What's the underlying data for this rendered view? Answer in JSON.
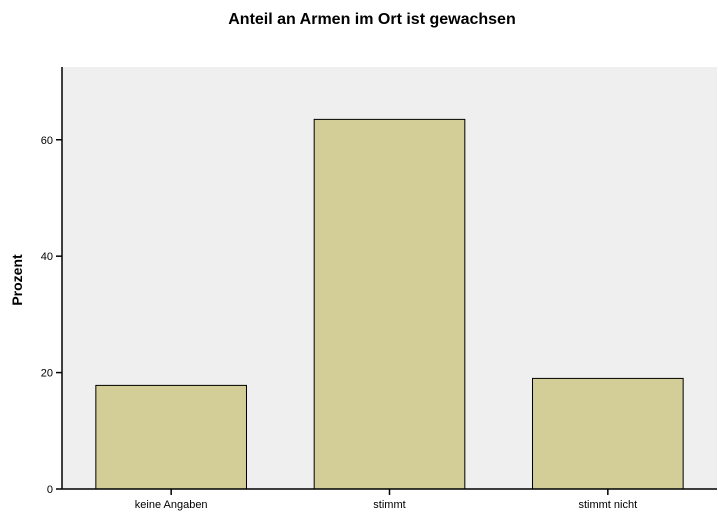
{
  "chart_data": {
    "type": "bar",
    "title": "Anteil an Armen im Ort ist gewachsen",
    "xlabel": "",
    "ylabel": "Prozent",
    "categories": [
      "keine Angaben",
      "stimmt",
      "stimmt nicht"
    ],
    "values": [
      17.8,
      63.5,
      19.0
    ],
    "ylim": [
      0,
      72.5
    ],
    "yticks": [
      0,
      20,
      40,
      60
    ],
    "grid": false,
    "colors": {
      "plot_background": "#efefef",
      "bar_fill": "#d3cd97",
      "bar_stroke": "#000000"
    }
  }
}
